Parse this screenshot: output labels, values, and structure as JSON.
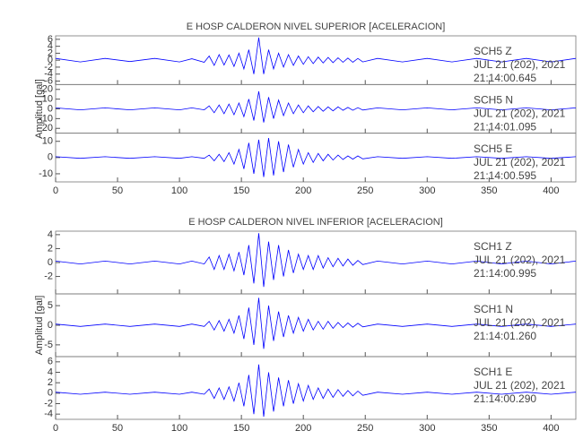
{
  "chart_data": [
    {
      "type": "line",
      "title": "E HOSP CALDERON NIVEL SUPERIOR [ACELERACION]",
      "ylabel": "Amplitud [gal]",
      "xlim": [
        0,
        420
      ],
      "xticks": [
        0,
        50,
        100,
        150,
        200,
        250,
        300,
        350,
        400
      ],
      "x": [
        0,
        20,
        40,
        60,
        80,
        100,
        110,
        120,
        124,
        128,
        132,
        136,
        140,
        144,
        148,
        152,
        156,
        160,
        164,
        168,
        172,
        176,
        180,
        184,
        188,
        192,
        196,
        200,
        204,
        208,
        212,
        216,
        220,
        224,
        228,
        232,
        236,
        240,
        244,
        248,
        260,
        280,
        300,
        320,
        340,
        360,
        380,
        400,
        420
      ],
      "series": [
        {
          "name": "SCH5   Z",
          "date": "JUL 21 (202), 2021",
          "time": "21:14:00.645",
          "color": "#0000ff",
          "ylim": [
            -7,
            7
          ],
          "yticks": [
            -6,
            -4,
            -2,
            0,
            2,
            4,
            6
          ],
          "values": [
            0.5,
            -0.5,
            0.5,
            -0.4,
            0.5,
            -0.5,
            0.4,
            -0.6,
            1.2,
            -1.5,
            1.6,
            -1.4,
            1.5,
            -1.8,
            2,
            -2.5,
            3,
            -4,
            6.5,
            -4,
            3,
            -2.5,
            2,
            -2,
            1.6,
            -1.5,
            1.2,
            -1.2,
            1,
            -1,
            0.9,
            -0.8,
            0.8,
            -0.7,
            0.7,
            -0.6,
            0.6,
            -0.6,
            0.5,
            -0.5,
            0.5,
            -0.5,
            0.5,
            -0.5,
            0.5,
            -0.5,
            0.5,
            -0.5,
            0.5
          ]
        },
        {
          "name": "SCH5   N",
          "date": "JUL 21 (202), 2021",
          "time": "21:14:01.095",
          "color": "#0000ff",
          "ylim": [
            -25,
            25
          ],
          "yticks": [
            -20,
            -10,
            0,
            10,
            20
          ],
          "values": [
            1,
            -1,
            1,
            -1,
            1,
            -1,
            1,
            -1,
            3,
            -4,
            4,
            -5,
            5,
            -6,
            6,
            -8,
            10,
            -12,
            18,
            -14,
            12,
            -10,
            9,
            -7,
            6,
            -5,
            4,
            -4,
            3,
            -3,
            2.5,
            -2.5,
            2,
            -2,
            2,
            -1.5,
            1.5,
            -1.5,
            1.2,
            -1.2,
            1,
            -1,
            1,
            -1,
            1,
            -1,
            1,
            -1,
            1
          ]
        },
        {
          "name": "SCH5   E",
          "date": "JUL 21 (202), 2021",
          "time": "21:14:00.595",
          "color": "#0000ff",
          "ylim": [
            -15,
            15
          ],
          "yticks": [
            -10,
            0,
            10
          ],
          "values": [
            0.5,
            -0.5,
            0.5,
            -0.5,
            0.5,
            -0.5,
            0.5,
            -0.5,
            1.5,
            -2,
            2,
            -2.5,
            3,
            -4,
            5,
            -7,
            9,
            -10,
            11,
            -12,
            12,
            -11,
            10,
            -9,
            8,
            -6,
            5,
            -4,
            3,
            -3,
            2.5,
            -2,
            2,
            -1.5,
            1.5,
            -1.2,
            1,
            -1,
            1,
            -0.8,
            0.5,
            -0.5,
            0.5,
            -0.5,
            0.5,
            -0.5,
            0.5,
            -0.5,
            0.5
          ]
        }
      ]
    },
    {
      "type": "line",
      "title": "E HOSP CALDERON NIVEL INFERIOR [ACELERACION]",
      "ylabel": "Amplitud [gal]",
      "xlim": [
        0,
        420
      ],
      "xticks": [
        0,
        50,
        100,
        150,
        200,
        250,
        300,
        350,
        400
      ],
      "x": [
        0,
        20,
        40,
        60,
        80,
        100,
        110,
        120,
        124,
        128,
        132,
        136,
        140,
        144,
        148,
        152,
        156,
        160,
        164,
        168,
        172,
        176,
        180,
        184,
        188,
        192,
        196,
        200,
        204,
        208,
        212,
        216,
        220,
        224,
        228,
        232,
        236,
        240,
        244,
        248,
        260,
        280,
        300,
        320,
        340,
        360,
        380,
        400,
        420
      ],
      "series": [
        {
          "name": "SCH1   Z",
          "date": "JUL 21 (202), 2021",
          "time": "21:14:00.995",
          "color": "#0000ff",
          "ylim": [
            -4.5,
            4.5
          ],
          "yticks": [
            -2,
            0,
            2,
            4
          ],
          "values": [
            0.2,
            -0.2,
            0.2,
            -0.2,
            0.2,
            -0.2,
            0.2,
            -0.2,
            0.8,
            -1,
            1,
            -1,
            1.2,
            -1.2,
            1.5,
            -1.8,
            2.5,
            -3,
            4.2,
            -3.5,
            3,
            -2.5,
            2.5,
            -2,
            1.8,
            -1.5,
            1.2,
            -1,
            1,
            -1,
            1,
            -0.8,
            0.7,
            -0.6,
            0.6,
            -0.5,
            0.5,
            -0.4,
            0.3,
            -0.3,
            0.2,
            -0.2,
            0.2,
            -0.2,
            0.2,
            -0.2,
            0.2,
            -0.2,
            0.2
          ]
        },
        {
          "name": "SCH1   N",
          "date": "JUL 21 (202), 2021",
          "time": "21:14:01.260",
          "color": "#0000ff",
          "ylim": [
            -8,
            8
          ],
          "yticks": [
            -5,
            0,
            5
          ],
          "values": [
            0.3,
            -0.3,
            0.3,
            -0.3,
            0.3,
            -0.3,
            0.3,
            -0.3,
            1,
            -1.2,
            1.2,
            -1.5,
            1.5,
            -2,
            2.5,
            -3.5,
            4.5,
            -5,
            7,
            -6,
            5,
            -4,
            3.5,
            -3,
            2.5,
            -2,
            2,
            -1.5,
            1.5,
            -1.2,
            1,
            -1,
            1,
            -0.8,
            0.7,
            -0.6,
            0.6,
            -0.5,
            0.5,
            -0.4,
            0.3,
            -0.3,
            0.3,
            -0.3,
            0.3,
            -0.3,
            0.3,
            -0.3,
            0.3
          ]
        },
        {
          "name": "SCH1   E",
          "date": "JUL 21 (202), 2021",
          "time": "21:14:00.290",
          "color": "#0000ff",
          "ylim": [
            -5,
            7
          ],
          "yticks": [
            -4,
            -2,
            0,
            2,
            4,
            6
          ],
          "values": [
            0.2,
            -0.2,
            0.2,
            -0.2,
            0.2,
            -0.2,
            0.2,
            -0.2,
            0.8,
            -1,
            1,
            -1.2,
            1.2,
            -1.5,
            2,
            -2.5,
            3.5,
            -4,
            5.5,
            -4.5,
            4,
            -3.5,
            3,
            -2.5,
            2.5,
            -2,
            1.8,
            -1.5,
            1.5,
            -1.2,
            1,
            -1,
            0.8,
            -0.8,
            0.7,
            -0.6,
            0.5,
            -0.5,
            0.4,
            -0.4,
            0.2,
            -0.2,
            0.2,
            -0.2,
            0.2,
            -0.2,
            0.2,
            -0.2,
            0.2
          ]
        }
      ]
    }
  ]
}
